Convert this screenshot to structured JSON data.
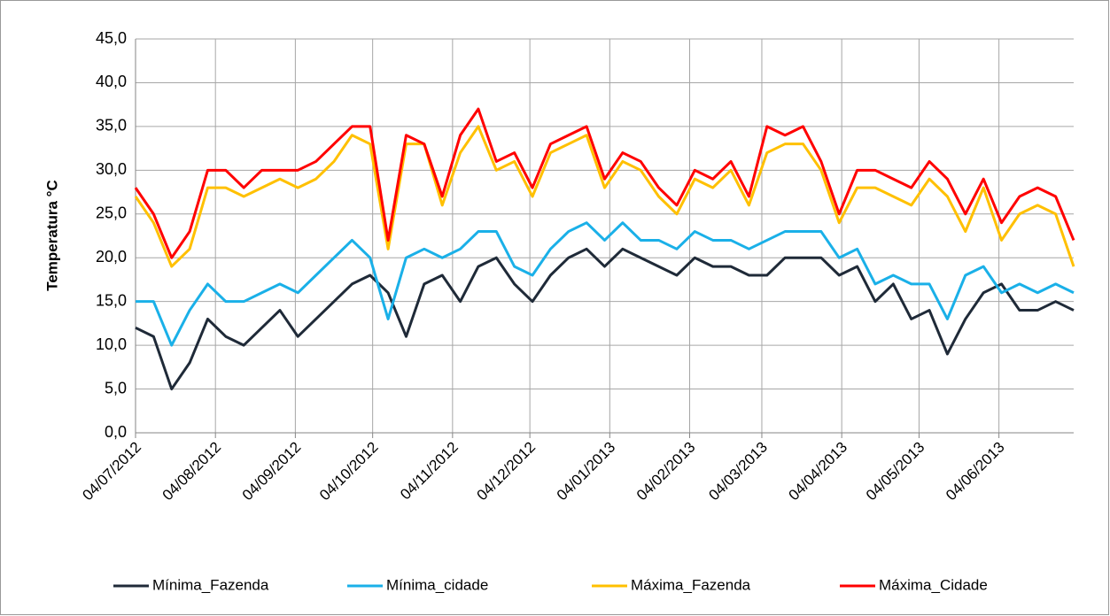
{
  "chart_data": {
    "type": "line",
    "y_label": "Temperatura °C",
    "x": [
      "04/07/2012",
      "11/07/2012",
      "18/07/2012",
      "25/07/2012",
      "01/08/2012",
      "08/08/2012",
      "15/08/2012",
      "22/08/2012",
      "29/08/2012",
      "05/09/2012",
      "12/09/2012",
      "19/09/2012",
      "26/09/2012",
      "03/10/2012",
      "10/10/2012",
      "17/10/2012",
      "24/10/2012",
      "31/10/2012",
      "07/11/2012",
      "14/11/2012",
      "21/11/2012",
      "28/11/2012",
      "05/12/2012",
      "12/12/2012",
      "19/12/2012",
      "26/12/2012",
      "02/01/2013",
      "09/01/2013",
      "16/01/2013",
      "23/01/2013",
      "30/01/2013",
      "06/02/2013",
      "13/02/2013",
      "20/02/2013",
      "27/02/2013",
      "06/03/2013",
      "13/03/2013",
      "20/03/2013",
      "27/03/2013",
      "03/04/2013",
      "10/04/2013",
      "17/04/2013",
      "24/04/2013",
      "01/05/2013",
      "08/05/2013",
      "15/05/2013",
      "22/05/2013",
      "29/05/2013",
      "05/06/2013",
      "12/06/2013",
      "19/06/2013",
      "26/06/2013",
      "03/07/2013"
    ],
    "series": [
      {
        "name": "Mínima_Fazenda",
        "color": "#1f2a38",
        "values": [
          12,
          11,
          5,
          8,
          13,
          11,
          10,
          12,
          14,
          11,
          13,
          15,
          17,
          18,
          16,
          11,
          17,
          18,
          15,
          19,
          20,
          17,
          15,
          18,
          20,
          21,
          19,
          21,
          20,
          19,
          18,
          20,
          19,
          19,
          18,
          18,
          20,
          20,
          20,
          18,
          19,
          15,
          17,
          13,
          14,
          9,
          13,
          16,
          17,
          14,
          14,
          15,
          14
        ]
      },
      {
        "name": "Mínima_cidade",
        "color": "#1ab0e8",
        "values": [
          15,
          15,
          10,
          14,
          17,
          15,
          15,
          16,
          17,
          16,
          18,
          20,
          22,
          20,
          13,
          20,
          21,
          20,
          21,
          23,
          23,
          19,
          18,
          21,
          23,
          24,
          22,
          24,
          22,
          22,
          21,
          23,
          22,
          22,
          21,
          22,
          23,
          23,
          23,
          20,
          21,
          17,
          18,
          17,
          17,
          13,
          18,
          19,
          16,
          17,
          16,
          17,
          16
        ]
      },
      {
        "name": "Máxima_Fazenda",
        "color": "#ffc000",
        "values": [
          27,
          24,
          19,
          21,
          28,
          28,
          27,
          28,
          29,
          28,
          29,
          31,
          34,
          33,
          21,
          33,
          33,
          26,
          32,
          35,
          30,
          31,
          27,
          32,
          33,
          34,
          28,
          31,
          30,
          27,
          25,
          29,
          28,
          30,
          26,
          32,
          33,
          33,
          30,
          24,
          28,
          28,
          27,
          26,
          29,
          27,
          23,
          28,
          22,
          25,
          26,
          25,
          19
        ]
      },
      {
        "name": "Máxima_Cidade",
        "color": "#ff0000",
        "values": [
          28,
          25,
          20,
          23,
          30,
          30,
          28,
          30,
          30,
          30,
          31,
          33,
          35,
          35,
          22,
          34,
          33,
          27,
          34,
          37,
          31,
          32,
          28,
          33,
          34,
          35,
          29,
          32,
          31,
          28,
          26,
          30,
          29,
          31,
          27,
          35,
          34,
          35,
          31,
          25,
          30,
          30,
          29,
          28,
          31,
          29,
          25,
          29,
          24,
          27,
          28,
          27,
          22
        ]
      }
    ],
    "xlim": [
      "04/07/2012",
      "03/07/2013"
    ],
    "xticks": [
      "04/07/2012",
      "04/08/2012",
      "04/09/2012",
      "04/10/2012",
      "04/11/2012",
      "04/12/2012",
      "04/01/2013",
      "04/02/2013",
      "04/03/2013",
      "04/04/2013",
      "04/05/2013",
      "04/06/2013"
    ],
    "ylim": [
      0,
      45
    ],
    "yticks": [
      {
        "value": 0,
        "label": "0,0"
      },
      {
        "value": 5,
        "label": "5,0"
      },
      {
        "value": 10,
        "label": "10,0"
      },
      {
        "value": 15,
        "label": "15,0"
      },
      {
        "value": 20,
        "label": "20,0"
      },
      {
        "value": 25,
        "label": "25,0"
      },
      {
        "value": 30,
        "label": "30,0"
      },
      {
        "value": 35,
        "label": "35,0"
      },
      {
        "value": 40,
        "label": "40,0"
      },
      {
        "value": 45,
        "label": "45,0"
      }
    ],
    "grid": true,
    "legend": "bottom"
  }
}
